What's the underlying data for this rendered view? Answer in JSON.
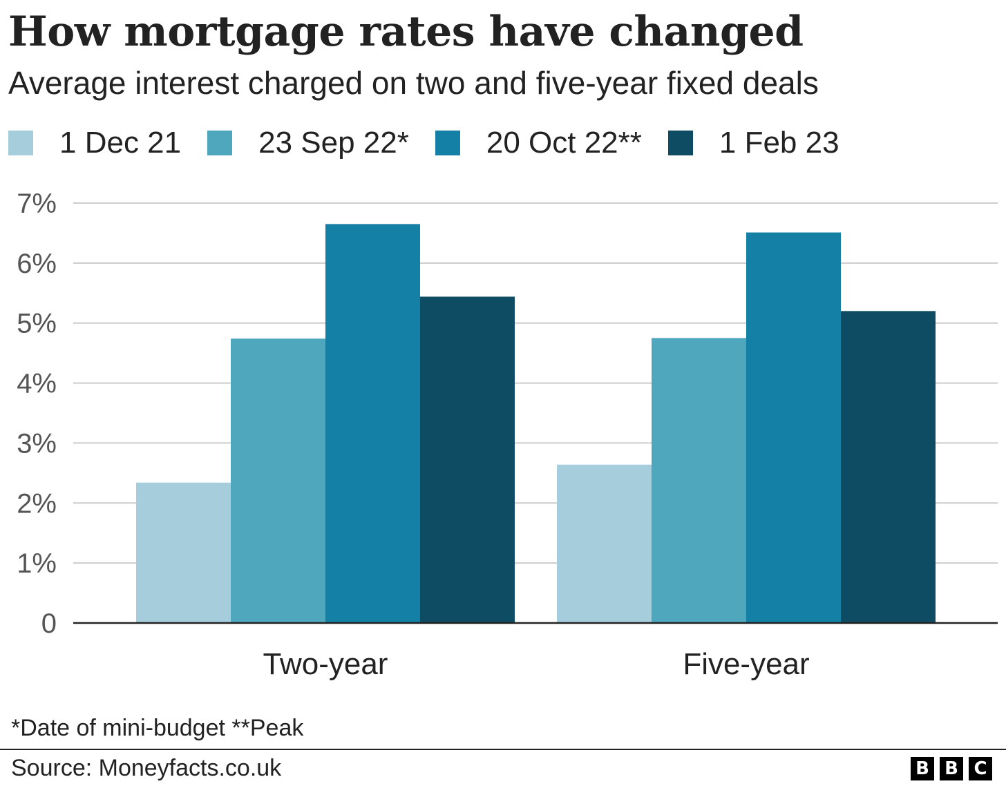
{
  "chart_data": {
    "type": "bar",
    "title": "How mortgage rates have changed",
    "subtitle": "Average interest charged on two and five-year fixed deals",
    "categories": [
      "Two-year",
      "Five-year"
    ],
    "series": [
      {
        "name": "1 Dec 21",
        "color": "#a6cddb",
        "values": [
          2.34,
          2.64
        ]
      },
      {
        "name": "23 Sep 22*",
        "color": "#4fa7bd",
        "values": [
          4.74,
          4.75
        ]
      },
      {
        "name": "20 Oct 22**",
        "color": "#1580a5",
        "values": [
          6.65,
          6.51
        ]
      },
      {
        "name": "1 Feb 23",
        "color": "#0d4c63",
        "values": [
          5.44,
          5.2
        ]
      }
    ],
    "ylim": [
      0,
      7
    ],
    "yticks": [
      {
        "value": 0,
        "label": "0"
      },
      {
        "value": 1,
        "label": "1%"
      },
      {
        "value": 2,
        "label": "2%"
      },
      {
        "value": 3,
        "label": "3%"
      },
      {
        "value": 4,
        "label": "4%"
      },
      {
        "value": 5,
        "label": "5%"
      },
      {
        "value": 6,
        "label": "6%"
      },
      {
        "value": 7,
        "label": "7%"
      }
    ],
    "xlabel": "",
    "ylabel": "",
    "grid": true,
    "legend": "top-left"
  },
  "footnote": "*Date of mini-budget **Peak",
  "source": "Source: Moneyfacts.co.uk",
  "logo": [
    "B",
    "B",
    "C"
  ]
}
